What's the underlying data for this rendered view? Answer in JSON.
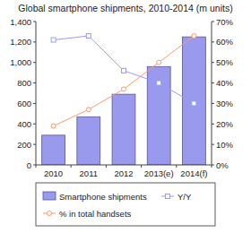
{
  "chart_data": {
    "type": "bar",
    "title": "Global smartphone shipments, 2010-2014 (m units)",
    "categories": [
      "2010",
      "2011",
      "2012",
      "2013(e)",
      "2014(f)"
    ],
    "series": [
      {
        "name": "Smartphone shipments",
        "type": "bar",
        "color": "#9999ee",
        "values": [
          290,
          470,
          690,
          960,
          1250
        ]
      },
      {
        "name": "Y/Y",
        "type": "line",
        "axis": "y2",
        "color": "#9999ff",
        "marker": "square",
        "values": [
          61,
          63,
          46,
          40,
          30
        ]
      },
      {
        "name": "% in total handsets",
        "type": "line",
        "axis": "y2",
        "color": "#ff9966",
        "marker": "circle",
        "values": [
          19,
          27,
          37,
          50,
          63
        ]
      }
    ],
    "ylim": [
      0,
      1400
    ],
    "yticks": [
      0,
      200,
      400,
      600,
      800,
      {
        "value": 1000,
        "label": "1,000"
      },
      {
        "value": 1200,
        "label": "1,200"
      },
      {
        "value": 1400,
        "label": "1,400"
      }
    ],
    "y2lim": [
      0,
      70
    ],
    "y2ticks": [
      {
        "value": 0,
        "label": "0%"
      },
      {
        "value": 10,
        "label": "10%"
      },
      {
        "value": 20,
        "label": "20%"
      },
      {
        "value": 30,
        "label": "30%"
      },
      {
        "value": 40,
        "label": "40%"
      },
      {
        "value": 50,
        "label": "50%"
      },
      {
        "value": 60,
        "label": "60%"
      },
      {
        "value": 70,
        "label": "70%"
      }
    ],
    "grid": false,
    "legend": "bottom"
  }
}
